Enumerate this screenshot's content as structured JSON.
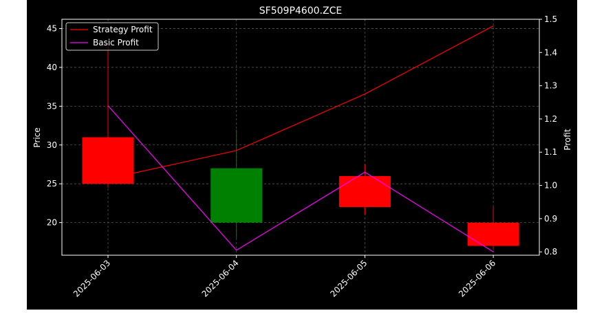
{
  "chart_data": {
    "type": "candlestick",
    "title": "SF509P4600.ZCE",
    "ylabel_left": "Price",
    "ylabel_right": "Profit",
    "xlabel": "",
    "categories": [
      "2025-06-03",
      "2025-06-04",
      "2025-06-05",
      "2025-06-06"
    ],
    "candles": [
      {
        "date": "2025-06-03",
        "open": 31.0,
        "high": 43.0,
        "low": 24.5,
        "close": 25.0,
        "color": "#ff0000"
      },
      {
        "date": "2025-06-04",
        "open": 20.0,
        "high": 32.0,
        "low": 18.0,
        "close": 27.0,
        "color": "#008000"
      },
      {
        "date": "2025-06-05",
        "open": 26.0,
        "high": 27.5,
        "low": 21.0,
        "close": 22.0,
        "color": "#ff0000"
      },
      {
        "date": "2025-06-06",
        "open": 20.0,
        "high": 22.0,
        "low": 16.5,
        "close": 17.0,
        "color": "#ff0000"
      }
    ],
    "series": [
      {
        "name": "Strategy Profit",
        "axis": "right",
        "color": "#ff0000",
        "values": [
          1.02,
          1.105,
          1.275,
          1.48
        ]
      },
      {
        "name": "Basic Profit",
        "axis": "right",
        "color": "#ff00ff",
        "values": [
          1.24,
          0.805,
          1.04,
          0.8
        ]
      }
    ],
    "ylim_left": [
      15.8,
      46.2
    ],
    "ylim_right": [
      0.79,
      1.5
    ],
    "yticks_left": [
      "20",
      "25",
      "30",
      "35",
      "40",
      "45"
    ],
    "yticks_right": [
      "0.8",
      "0.9",
      "1.0",
      "1.1",
      "1.2",
      "1.3",
      "1.4",
      "1.5"
    ],
    "grid": true,
    "legend_position": "top-left",
    "colors": {
      "background": "#000000",
      "foreground": "#ffffff",
      "grid": "#555555"
    }
  }
}
